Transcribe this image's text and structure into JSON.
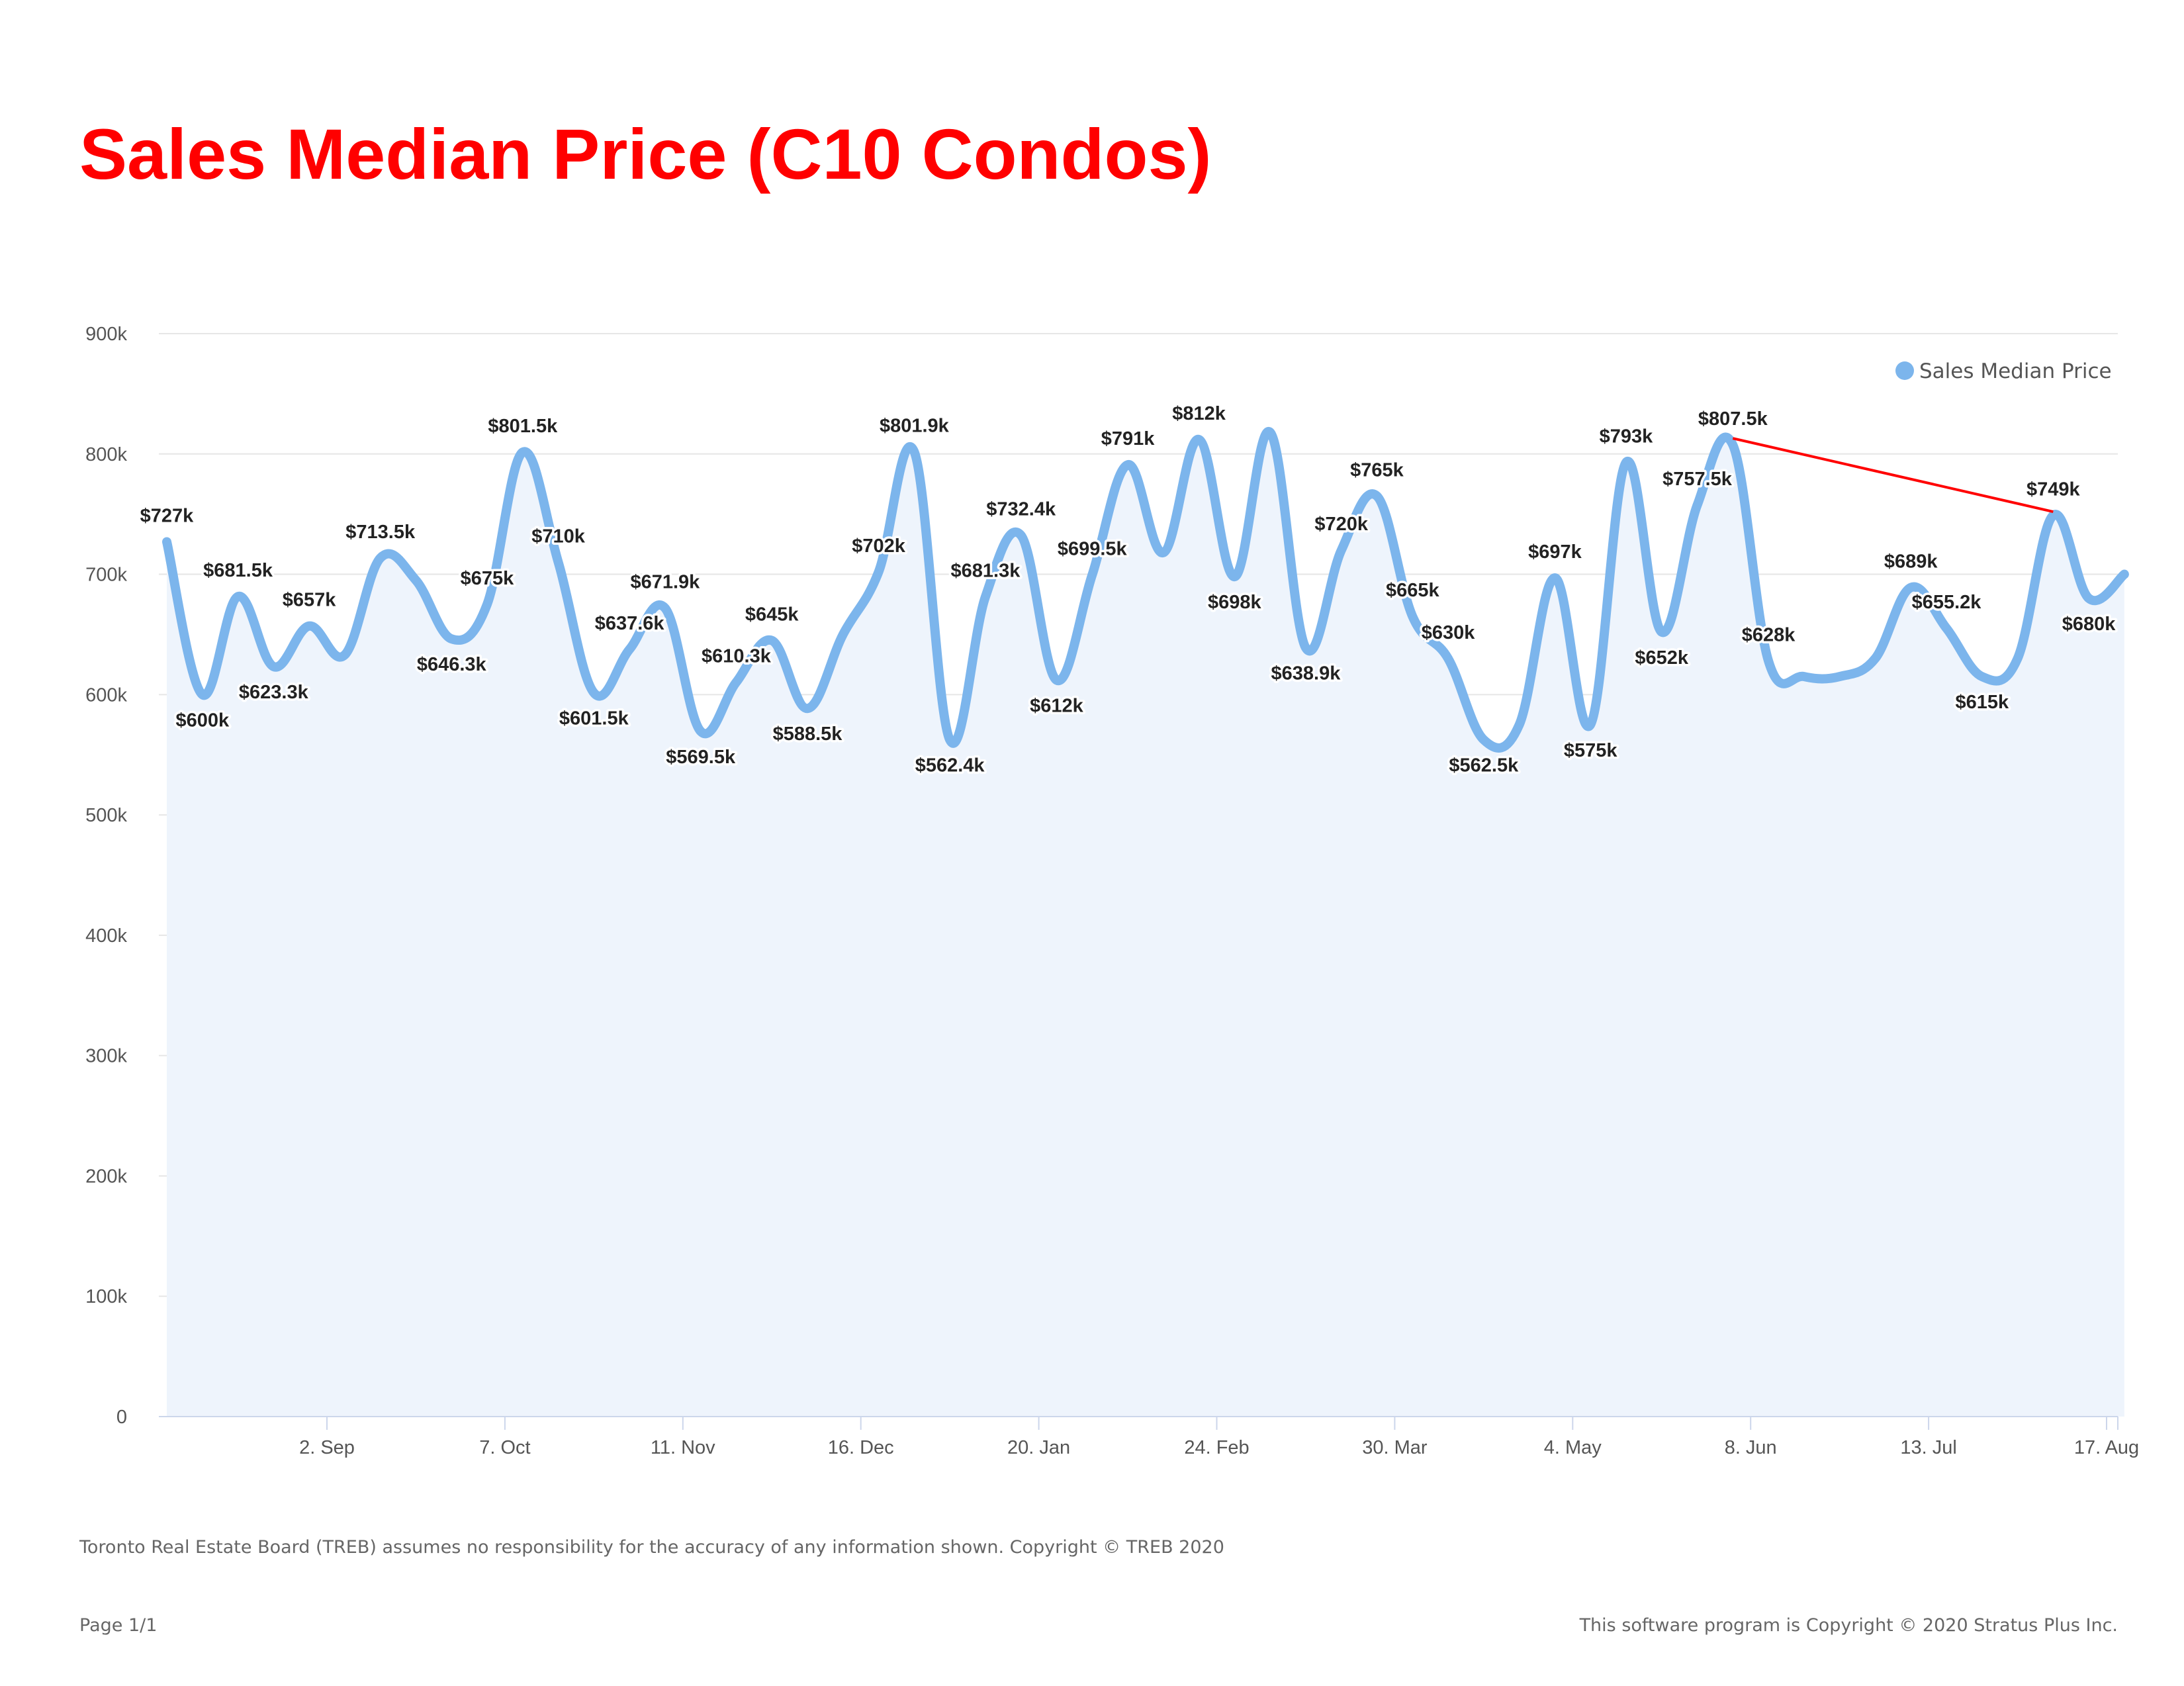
{
  "title": "Sales Median Price (C10 Condos)",
  "footer": {
    "disclaimer": "Toronto Real Estate Board (TREB) assumes no responsibility for the accuracy of any information shown. Copyright © TREB 2020",
    "page": "Page 1/1",
    "copyright": "This software program is Copyright © 2020 Stratus Plus Inc."
  },
  "colors": {
    "title": "#ff0000",
    "series": "#7cb5ec",
    "area": "#eef4fc",
    "trendline": "#ff0000",
    "grid": "#e6e6e6"
  },
  "chart_data": {
    "type": "area",
    "y_ticks": [
      "0",
      "100k",
      "200k",
      "300k",
      "400k",
      "500k",
      "600k",
      "700k",
      "800k",
      "900k"
    ],
    "ylim": [
      0,
      900000
    ],
    "x_ticks": [
      {
        "week": 3,
        "label": "2. Sep"
      },
      {
        "week": 8,
        "label": "7. Oct"
      },
      {
        "week": 13,
        "label": "11. Nov"
      },
      {
        "week": 18,
        "label": "16. Dec"
      },
      {
        "week": 23,
        "label": "20. Jan"
      },
      {
        "week": 28,
        "label": "24. Feb"
      },
      {
        "week": 33,
        "label": "30. Mar"
      },
      {
        "week": 38,
        "label": "4. May"
      },
      {
        "week": 43,
        "label": "8. Jun"
      },
      {
        "week": 48,
        "label": "13. Jul"
      },
      {
        "week": 53,
        "label": "17. Aug"
      }
    ],
    "legend": "top-right",
    "grid": true,
    "series": [
      {
        "name": "Sales Median Price",
        "points": [
          {
            "week": -1.5,
            "value": 727000,
            "label": "$727k"
          },
          {
            "week": -0.5,
            "value": 600000,
            "label": "$600k"
          },
          {
            "week": 0.5,
            "value": 681500,
            "label": "$681.5k"
          },
          {
            "week": 1.5,
            "value": 623300,
            "label": "$623.3k"
          },
          {
            "week": 2.5,
            "value": 657000,
            "label": "$657k"
          },
          {
            "week": 3.5,
            "value": 633000,
            "label": ""
          },
          {
            "week": 4.5,
            "value": 713500,
            "label": "$713.5k"
          },
          {
            "week": 5.5,
            "value": 695000,
            "label": ""
          },
          {
            "week": 6.5,
            "value": 646300,
            "label": "$646.3k"
          },
          {
            "week": 7.5,
            "value": 675000,
            "label": "$675k"
          },
          {
            "week": 8.5,
            "value": 801500,
            "label": "$801.5k"
          },
          {
            "week": 9.5,
            "value": 710000,
            "label": "$710k"
          },
          {
            "week": 10.5,
            "value": 601500,
            "label": "$601.5k"
          },
          {
            "week": 11.5,
            "value": 637600,
            "label": "$637.6k"
          },
          {
            "week": 12.5,
            "value": 671900,
            "label": "$671.9k"
          },
          {
            "week": 13.5,
            "value": 569500,
            "label": "$569.5k"
          },
          {
            "week": 14.5,
            "value": 610300,
            "label": "$610.3k"
          },
          {
            "week": 15.5,
            "value": 645000,
            "label": "$645k"
          },
          {
            "week": 16.5,
            "value": 588500,
            "label": "$588.5k"
          },
          {
            "week": 17.5,
            "value": 650000,
            "label": ""
          },
          {
            "week": 18.5,
            "value": 702000,
            "label": "$702k"
          },
          {
            "week": 19.5,
            "value": 801900,
            "label": "$801.9k"
          },
          {
            "week": 20.5,
            "value": 562400,
            "label": "$562.4k"
          },
          {
            "week": 21.5,
            "value": 681300,
            "label": "$681.3k"
          },
          {
            "week": 22.5,
            "value": 732400,
            "label": "$732.4k"
          },
          {
            "week": 23.5,
            "value": 612000,
            "label": "$612k"
          },
          {
            "week": 24.5,
            "value": 699500,
            "label": "$699.5k"
          },
          {
            "week": 25.5,
            "value": 791000,
            "label": "$791k"
          },
          {
            "week": 26.5,
            "value": 718000,
            "label": ""
          },
          {
            "week": 27.5,
            "value": 812000,
            "label": "$812k"
          },
          {
            "week": 28.5,
            "value": 698000,
            "label": "$698k"
          },
          {
            "week": 29.5,
            "value": 818000,
            "label": ""
          },
          {
            "week": 30.5,
            "value": 638900,
            "label": "$638.9k"
          },
          {
            "week": 31.5,
            "value": 720000,
            "label": "$720k"
          },
          {
            "week": 32.5,
            "value": 765000,
            "label": "$765k"
          },
          {
            "week": 33.5,
            "value": 665000,
            "label": "$665k"
          },
          {
            "week": 34.5,
            "value": 630000,
            "label": "$630k"
          },
          {
            "week": 35.5,
            "value": 562500,
            "label": "$562.5k"
          },
          {
            "week": 36.5,
            "value": 575000,
            "label": ""
          },
          {
            "week": 37.5,
            "value": 697000,
            "label": "$697k"
          },
          {
            "week": 38.5,
            "value": 575000,
            "label": "$575k"
          },
          {
            "week": 39.5,
            "value": 793000,
            "label": "$793k"
          },
          {
            "week": 40.5,
            "value": 652000,
            "label": "$652k"
          },
          {
            "week": 41.5,
            "value": 757500,
            "label": "$757.5k"
          },
          {
            "week": 42.5,
            "value": 807500,
            "label": "$807.5k"
          },
          {
            "week": 43.5,
            "value": 628000,
            "label": "$628k"
          },
          {
            "week": 44.5,
            "value": 615000,
            "label": ""
          },
          {
            "week": 45.5,
            "value": 615000,
            "label": ""
          },
          {
            "week": 46.5,
            "value": 630000,
            "label": ""
          },
          {
            "week": 47.5,
            "value": 689000,
            "label": "$689k"
          },
          {
            "week": 48.5,
            "value": 655200,
            "label": "$655.2k"
          },
          {
            "week": 49.5,
            "value": 615000,
            "label": "$615k"
          },
          {
            "week": 50.5,
            "value": 630000,
            "label": ""
          },
          {
            "week": 51.5,
            "value": 749000,
            "label": "$749k"
          },
          {
            "week": 52.5,
            "value": 680000,
            "label": "$680k"
          },
          {
            "week": 53.5,
            "value": 700000,
            "label": ""
          }
        ]
      }
    ],
    "trendline": {
      "from_week": 42.5,
      "from_value": 813000,
      "to_week": 51.5,
      "to_value": 752000
    }
  }
}
